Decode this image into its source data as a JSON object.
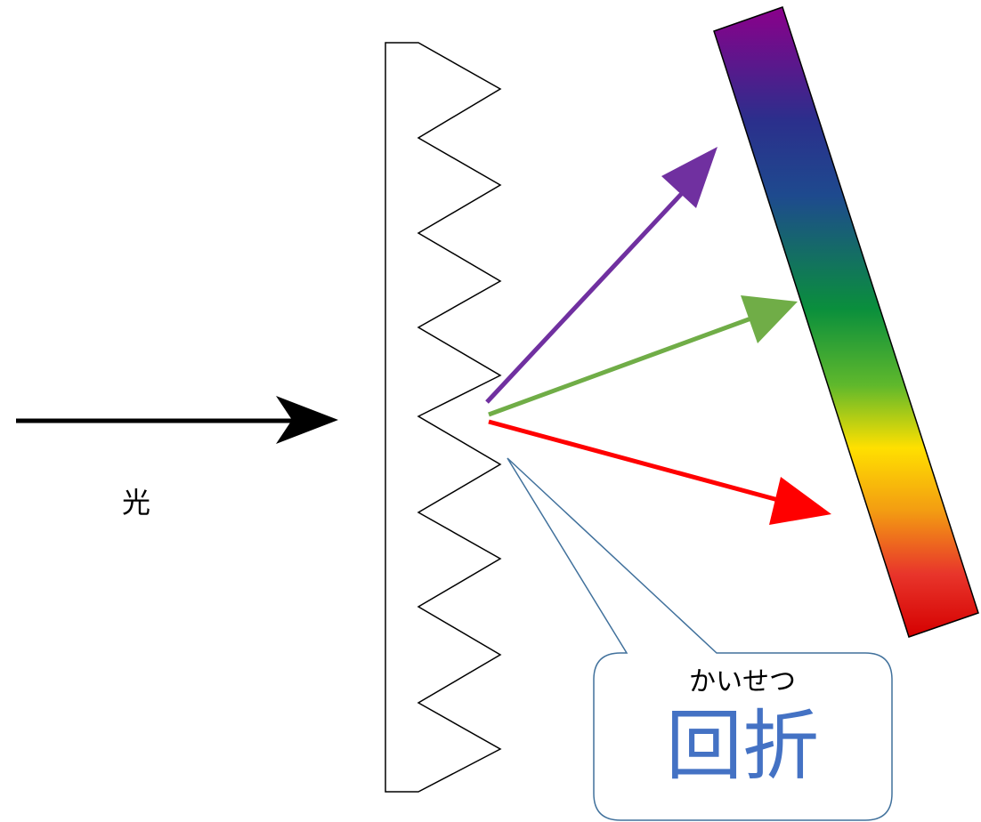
{
  "labels": {
    "light": "光",
    "callout_reading": "かいせつ",
    "callout_term": "回折"
  },
  "colors": {
    "incident_arrow": "#000000",
    "arrow_violet": "#7030a0",
    "arrow_green": "#70ad47",
    "arrow_red": "#ff0000",
    "callout_border": "#41719c",
    "callout_text": "#4472c4",
    "spectrum": [
      "#8b008b",
      "#2b2f8c",
      "#1e4a8e",
      "#0a8f3c",
      "#5fb82c",
      "#ffe000",
      "#f39c12",
      "#e8352b",
      "#d50000"
    ]
  },
  "icons": {
    "grating": "sawtooth-diffraction-grating",
    "spectrum": "color-spectrum-bar"
  }
}
